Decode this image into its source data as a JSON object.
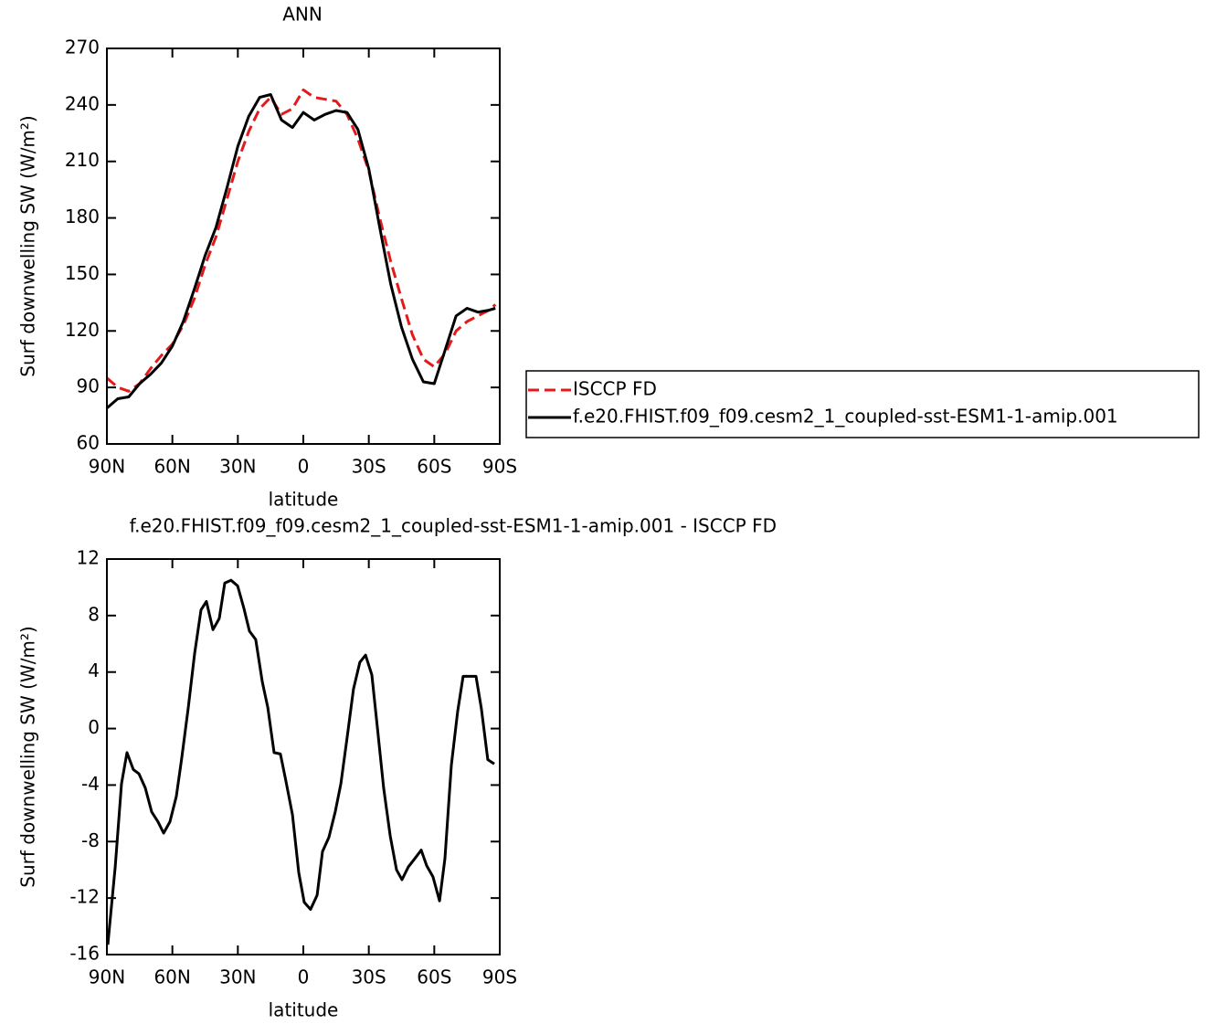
{
  "chart_data": [
    {
      "type": "line",
      "title": "ANN",
      "xlabel": "latitude",
      "ylabel": "Surf downwelling SW (W/m²)",
      "x": [
        90,
        85,
        80,
        75,
        70,
        65,
        60,
        55,
        50,
        45,
        40,
        35,
        30,
        25,
        20,
        15,
        10,
        5,
        0,
        -5,
        -10,
        -15,
        -20,
        -25,
        -30,
        -35,
        -40,
        -45,
        -50,
        -55,
        -60,
        -65,
        -70,
        -75,
        -80,
        -85,
        -88
      ],
      "series": [
        {
          "name": "ISCCP FD",
          "color": "#e31a1c",
          "style": "dashed",
          "values": [
            95,
            90,
            88,
            92,
            100,
            107,
            113,
            123,
            137,
            155,
            170,
            190,
            210,
            226,
            238,
            244,
            235,
            238,
            248,
            244,
            243,
            242,
            235,
            222,
            205,
            180,
            157,
            137,
            118,
            105,
            101,
            108,
            120,
            125,
            128,
            131,
            134
          ]
        },
        {
          "name": "f.e20.FHIST.f09_f09.cesm2_1_coupled-sst-ESM1-1-amip.001",
          "color": "#000000",
          "style": "solid",
          "values": [
            79,
            84,
            85,
            92,
            97,
            103,
            112,
            125,
            142,
            160,
            175,
            196,
            218,
            234,
            244,
            245.5,
            232,
            228,
            236,
            232,
            235,
            237,
            236,
            227,
            206,
            175,
            145,
            122,
            105,
            93,
            92,
            110,
            128,
            132,
            130,
            131,
            132
          ]
        }
      ],
      "xlim": [
        90,
        -90
      ],
      "xticks": [
        {
          "value": 90,
          "label": "90N"
        },
        {
          "value": 60,
          "label": "60N"
        },
        {
          "value": 30,
          "label": "30N"
        },
        0,
        {
          "value": -30,
          "label": "30S"
        },
        {
          "value": -60,
          "label": "60S"
        },
        {
          "value": -90,
          "label": "90S"
        }
      ],
      "ylim": [
        60,
        270
      ],
      "yticks": [
        60,
        90,
        120,
        150,
        180,
        210,
        240,
        270
      ],
      "legend": "right"
    },
    {
      "type": "line",
      "title": "f.e20.FHIST.f09_f09.cesm2_1_coupled-sst-ESM1-1-amip.001 - ISCCP FD",
      "xlabel": "latitude",
      "ylabel": "Surf downwelling SW (W/m²)",
      "x": [
        89.6,
        86.2,
        83.3,
        80.8,
        77.9,
        75.3,
        72.4,
        69.5,
        66.6,
        64,
        61.1,
        58.2,
        55.7,
        52.7,
        49.8,
        46.9,
        44.4,
        41.4,
        38.5,
        36,
        33.1,
        30.1,
        27.2,
        24.7,
        21.8,
        18.8,
        16.3,
        13.4,
        10.5,
        8,
        5,
        2.1,
        -0.4,
        -3.3,
        -6.3,
        -8.8,
        -11.7,
        -14.6,
        -17.2,
        -20.1,
        -23,
        -25.9,
        -28.5,
        -31.4,
        -33.9,
        -36.8,
        -39.8,
        -42.7,
        -45.2,
        -48.1,
        -51.1,
        -54,
        -56.5,
        -59.4,
        -62.4,
        -64.9,
        -67.8,
        -70.7,
        -73.2,
        -76.2,
        -79.1,
        -81.6,
        -84.5,
        -87.5
      ],
      "values": [
        -15.3,
        -9.8,
        -3.9,
        -1.7,
        -2.9,
        -3.2,
        -4.2,
        -5.9,
        -6.6,
        -7.4,
        -6.6,
        -4.8,
        -2.1,
        1.5,
        5.3,
        8.4,
        9.0,
        7.0,
        7.8,
        10.3,
        10.5,
        10.1,
        8.5,
        6.9,
        6.3,
        3.3,
        1.5,
        -1.7,
        -1.8,
        -3.7,
        -6.1,
        -10.2,
        -12.3,
        -12.8,
        -11.8,
        -8.7,
        -7.7,
        -5.9,
        -3.9,
        -0.6,
        2.8,
        4.7,
        5.2,
        3.8,
        0.1,
        -4.2,
        -7.6,
        -10.0,
        -10.7,
        -9.8,
        -9.2,
        -8.6,
        -9.7,
        -10.5,
        -12.2,
        -9.2,
        -2.6,
        1.2,
        3.7,
        3.7,
        3.7,
        1.4,
        -2.2,
        -2.5
      ],
      "color": "#000000",
      "xlim": [
        90,
        -90
      ],
      "xticks": [
        {
          "value": 90,
          "label": "90N"
        },
        {
          "value": 60,
          "label": "60N"
        },
        {
          "value": 30,
          "label": "30N"
        },
        0,
        {
          "value": -30,
          "label": "30S"
        },
        {
          "value": -60,
          "label": "60S"
        },
        {
          "value": -90,
          "label": "90S"
        }
      ],
      "ylim": [
        -16,
        12
      ],
      "yticks": [
        -16,
        -12,
        -8,
        -4,
        0,
        4,
        8,
        12
      ]
    }
  ]
}
